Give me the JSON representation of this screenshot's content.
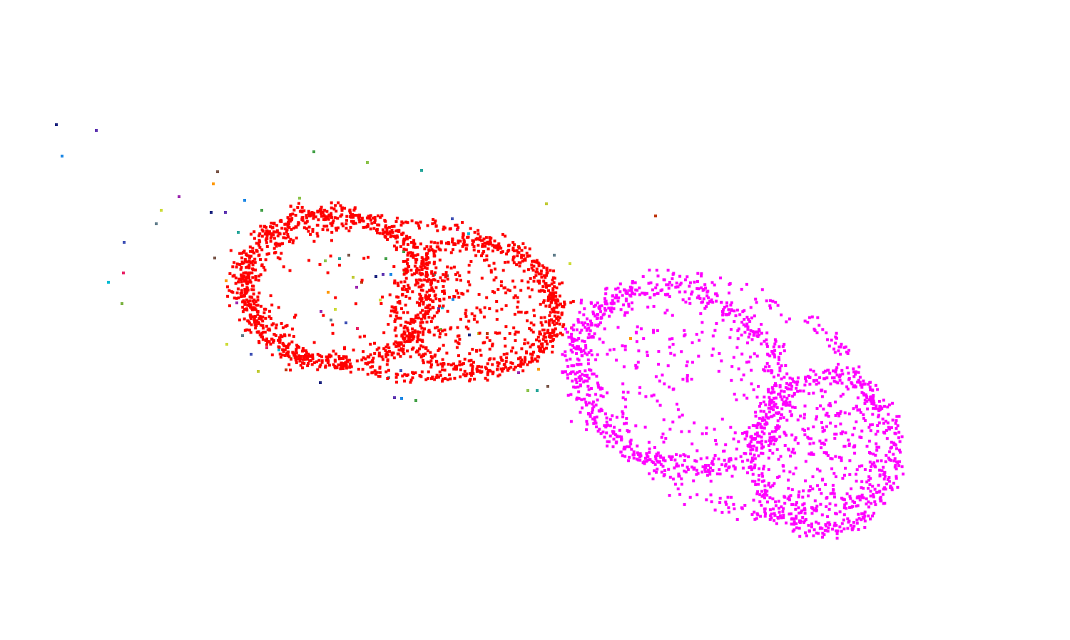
{
  "scene": {
    "background_color": "#ffffff",
    "point_clouds": [
      {
        "name": "red-cluster",
        "color": "#ff0000",
        "point_count_estimate": 2000
      },
      {
        "name": "magenta-cluster",
        "color": "#ff00ff",
        "point_count_estimate": 1600
      }
    ],
    "noise_points": {
      "description_colors": [
        "#1a237e",
        "#5e35b1",
        "#1e88e5",
        "#43a047",
        "#8bc34a",
        "#26a69a",
        "#795548",
        "#ff9800",
        "#9c27b0",
        "#cddc39",
        "#607d8b",
        "#3f51b5",
        "#e91e63",
        "#00bcd4",
        "#7cb342",
        "#c0ca33",
        "#bf360c"
      ]
    }
  }
}
